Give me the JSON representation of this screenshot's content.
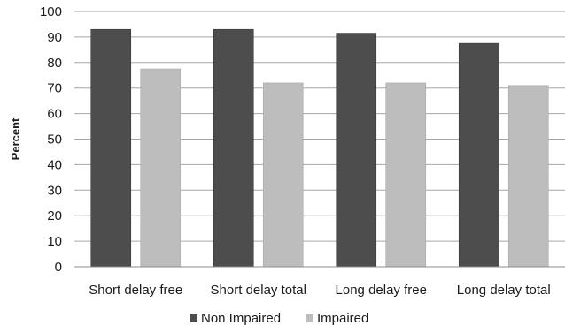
{
  "chart_data": {
    "type": "bar",
    "title": "",
    "xlabel": "",
    "ylabel": "Percent",
    "ylim": [
      0,
      100
    ],
    "yticks": [
      0,
      10,
      20,
      30,
      40,
      50,
      60,
      70,
      80,
      90,
      100
    ],
    "grid": true,
    "legend_position": "bottom",
    "categories": [
      "Short delay free",
      "Short delay total",
      "Long delay free",
      "Long delay total"
    ],
    "series": [
      {
        "name": "Non Impaired",
        "color": "#4d4d4d",
        "values": [
          93,
          93,
          91.5,
          87.5
        ]
      },
      {
        "name": "Impaired",
        "color": "#bdbdbd",
        "values": [
          77.5,
          72,
          72,
          71
        ]
      }
    ]
  }
}
